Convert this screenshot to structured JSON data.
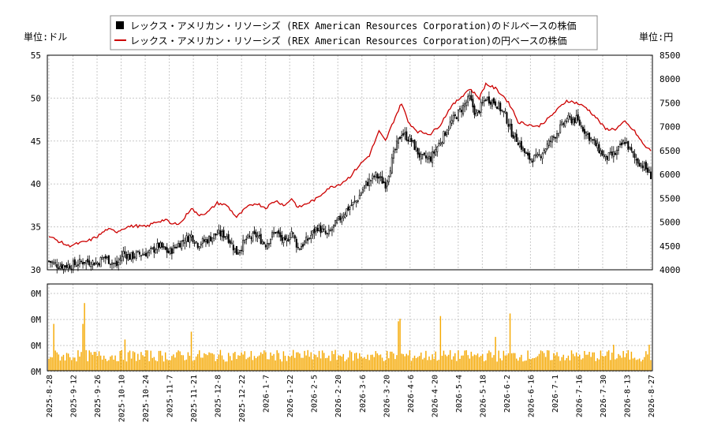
{
  "chart_data": {
    "type": "candlestick",
    "legend": {
      "placement": "top-center",
      "entries": [
        {
          "label": "レックス・アメリカン・リソーシズ (REX American Resources Corporation)のドルベースの株価",
          "color": "#000000",
          "marker": "square"
        },
        {
          "label": "レックス・アメリカン・リソーシズ (REX American Resources Corporation)の円ベースの株価",
          "color": "#cc0000",
          "marker": "line"
        }
      ]
    },
    "left_axis_label": "単位:ドル",
    "right_axis_label": "単位:円",
    "price_axis_left": {
      "ylim": [
        30,
        55
      ],
      "ticks": [
        "55",
        "50",
        "45",
        "40",
        "35",
        "30"
      ]
    },
    "price_axis_right": {
      "ylim": [
        4000,
        8500
      ],
      "ticks": [
        "8500",
        "8000",
        "7500",
        "7000",
        "6500",
        "6000",
        "5500",
        "5000",
        "4500",
        "4000"
      ]
    },
    "volume_axis": {
      "ticks": [
        "0M",
        "0M",
        "0M",
        "0M"
      ]
    },
    "x_ticks": [
      "2025-8-28",
      "2025-9-12",
      "2025-9-26",
      "2025-10-10",
      "2025-10-24",
      "2025-11-7",
      "2025-11-21",
      "2025-12-8",
      "2025-12-22",
      "2026-1-7",
      "2026-1-22",
      "2026-2-5",
      "2026-2-20",
      "2026-3-6",
      "2026-3-20",
      "2026-4-6",
      "2026-4-20",
      "2026-5-4",
      "2026-5-18",
      "2026-6-2",
      "2026-6-16",
      "2026-7-1",
      "2026-7-16",
      "2026-7-30",
      "2026-8-13",
      "2026-8-27"
    ],
    "grid": true,
    "usd_anchors": [
      [
        0,
        31.0
      ],
      [
        6,
        30.5
      ],
      [
        14,
        30.5
      ],
      [
        22,
        31.0
      ],
      [
        30,
        30.8
      ],
      [
        34,
        31.5
      ],
      [
        38,
        31.0
      ],
      [
        42,
        30.5
      ],
      [
        46,
        32.0
      ],
      [
        50,
        31.5
      ],
      [
        55,
        31.8
      ],
      [
        62,
        32.0
      ],
      [
        68,
        32.8
      ],
      [
        74,
        32.0
      ],
      [
        80,
        33.0
      ],
      [
        88,
        34.0
      ],
      [
        92,
        33.0
      ],
      [
        98,
        33.5
      ],
      [
        104,
        34.2
      ],
      [
        110,
        34.0
      ],
      [
        116,
        32.0
      ],
      [
        122,
        33.5
      ],
      [
        128,
        34.0
      ],
      [
        134,
        33.0
      ],
      [
        140,
        34.5
      ],
      [
        146,
        33.0
      ],
      [
        150,
        34.5
      ],
      [
        154,
        32.5
      ],
      [
        160,
        33.5
      ],
      [
        166,
        35.0
      ],
      [
        172,
        34.0
      ],
      [
        178,
        35.5
      ],
      [
        184,
        37.0
      ],
      [
        190,
        38.0
      ],
      [
        196,
        40.0
      ],
      [
        202,
        41.0
      ],
      [
        208,
        40.0
      ],
      [
        214,
        44.0
      ],
      [
        218,
        46.0
      ],
      [
        224,
        45.0
      ],
      [
        230,
        43.0
      ],
      [
        236,
        43.0
      ],
      [
        242,
        45.0
      ],
      [
        248,
        47.0
      ],
      [
        254,
        48.5
      ],
      [
        260,
        50.0
      ],
      [
        264,
        48.0
      ],
      [
        270,
        50.0
      ],
      [
        276,
        49.5
      ],
      [
        282,
        48.0
      ],
      [
        286,
        46.0
      ],
      [
        290,
        45.0
      ],
      [
        296,
        43.0
      ],
      [
        302,
        43.0
      ],
      [
        308,
        44.5
      ],
      [
        314,
        46.0
      ],
      [
        320,
        47.5
      ],
      [
        326,
        47.5
      ],
      [
        332,
        46.0
      ],
      [
        338,
        44.5
      ],
      [
        344,
        43.0
      ],
      [
        350,
        43.5
      ],
      [
        356,
        45.0
      ],
      [
        362,
        43.0
      ],
      [
        368,
        42.0
      ],
      [
        372,
        41.0
      ]
    ],
    "jpy_anchors": [
      [
        0,
        4700
      ],
      [
        6,
        4600
      ],
      [
        12,
        4500
      ],
      [
        18,
        4550
      ],
      [
        24,
        4600
      ],
      [
        30,
        4700
      ],
      [
        36,
        4850
      ],
      [
        42,
        4800
      ],
      [
        48,
        4900
      ],
      [
        54,
        4920
      ],
      [
        60,
        4900
      ],
      [
        66,
        5000
      ],
      [
        72,
        5050
      ],
      [
        76,
        4950
      ],
      [
        82,
        5000
      ],
      [
        88,
        5300
      ],
      [
        92,
        5150
      ],
      [
        98,
        5200
      ],
      [
        104,
        5400
      ],
      [
        110,
        5350
      ],
      [
        116,
        5100
      ],
      [
        122,
        5300
      ],
      [
        128,
        5400
      ],
      [
        134,
        5300
      ],
      [
        140,
        5450
      ],
      [
        146,
        5350
      ],
      [
        150,
        5500
      ],
      [
        154,
        5300
      ],
      [
        160,
        5400
      ],
      [
        166,
        5500
      ],
      [
        172,
        5700
      ],
      [
        180,
        5800
      ],
      [
        186,
        5950
      ],
      [
        192,
        6200
      ],
      [
        198,
        6400
      ],
      [
        204,
        6900
      ],
      [
        208,
        6700
      ],
      [
        214,
        7200
      ],
      [
        218,
        7500
      ],
      [
        222,
        7100
      ],
      [
        228,
        6900
      ],
      [
        236,
        6850
      ],
      [
        242,
        7050
      ],
      [
        248,
        7400
      ],
      [
        254,
        7600
      ],
      [
        260,
        7800
      ],
      [
        266,
        7600
      ],
      [
        270,
        7900
      ],
      [
        276,
        7800
      ],
      [
        282,
        7600
      ],
      [
        286,
        7400
      ],
      [
        290,
        7100
      ],
      [
        296,
        7050
      ],
      [
        302,
        7000
      ],
      [
        308,
        7150
      ],
      [
        314,
        7350
      ],
      [
        320,
        7550
      ],
      [
        326,
        7500
      ],
      [
        332,
        7400
      ],
      [
        338,
        7200
      ],
      [
        344,
        6950
      ],
      [
        350,
        6950
      ],
      [
        356,
        7100
      ],
      [
        362,
        6900
      ],
      [
        368,
        6600
      ],
      [
        372,
        6500
      ]
    ],
    "volume_spikes": [
      [
        3,
        1.8
      ],
      [
        21,
        1.8
      ],
      [
        22,
        2.6
      ],
      [
        47,
        1.2
      ],
      [
        88,
        1.5
      ],
      [
        216,
        1.9
      ],
      [
        217,
        2.0
      ],
      [
        242,
        2.1
      ],
      [
        276,
        1.3
      ],
      [
        285,
        2.2
      ],
      [
        349,
        1.0
      ],
      [
        371,
        1.0
      ]
    ],
    "n_days": 373
  }
}
